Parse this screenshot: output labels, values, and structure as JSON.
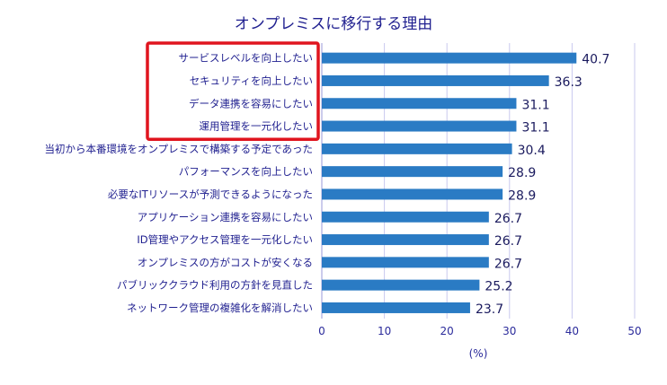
{
  "chart_data": {
    "type": "bar",
    "orientation": "horizontal",
    "title": "オンプレミスに移行する理由",
    "xlabel": "(%)",
    "xlim": [
      0,
      50
    ],
    "xticks": [
      0,
      10,
      20,
      30,
      40,
      50
    ],
    "grid": true,
    "categories": [
      "サービスレベルを向上したい",
      "セキュリティを向上したい",
      "データ連携を容易にしたい",
      "運用管理を一元化したい",
      "当初から本番環境をオンプレミスで構築する予定であった",
      "パフォーマンスを向上したい",
      "必要なITリソースが予測できるようになった",
      "アプリケーション連携を容易にしたい",
      "ID管理やアクセス管理を一元化したい",
      "オンプレミスの方がコストが安くなる",
      "パブリッククラウド利用の方針を見直した",
      "ネットワーク管理の複雑化を解消したい"
    ],
    "values": [
      40.7,
      36.3,
      31.1,
      31.1,
      30.4,
      28.9,
      28.9,
      26.7,
      26.7,
      26.7,
      25.2,
      23.7
    ],
    "highlighted_categories": [
      0,
      1,
      2,
      3
    ],
    "colors": {
      "bar": "#2a7bc4",
      "highlight_box": "#e0141e"
    }
  }
}
